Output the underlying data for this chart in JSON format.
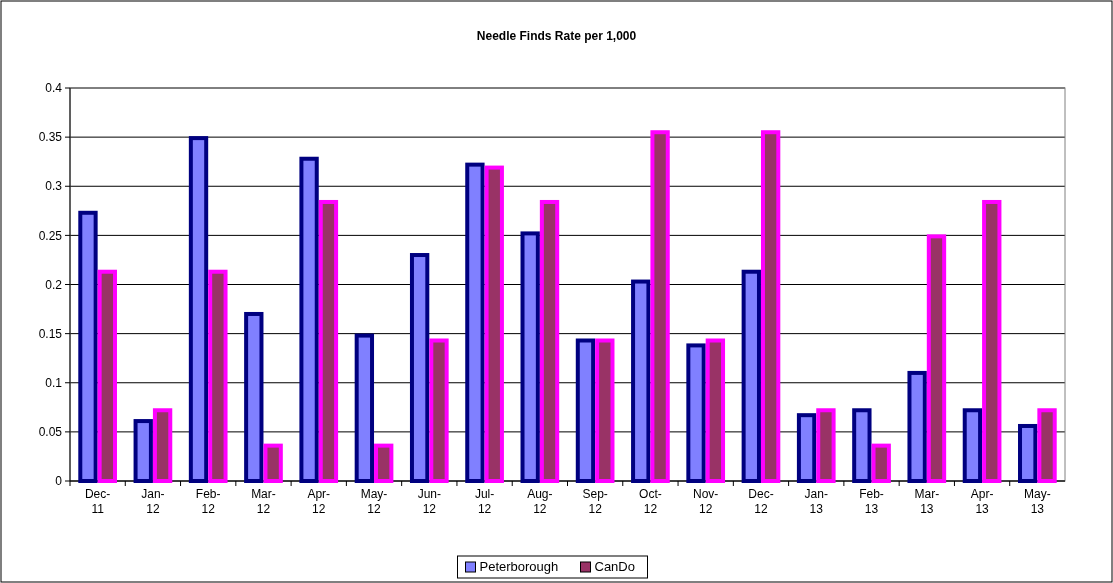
{
  "chart_data": {
    "type": "bar",
    "title": "Needle Finds Rate per 1,000",
    "categories": [
      "Dec-11",
      "Jan-12",
      "Feb-12",
      "Mar-12",
      "Apr-12",
      "May-12",
      "Jun-12",
      "Jul-12",
      "Aug-12",
      "Sep-12",
      "Oct-12",
      "Nov-12",
      "Dec-12",
      "Jan-13",
      "Feb-13",
      "Mar-13",
      "Apr-13",
      "May-13"
    ],
    "series": [
      {
        "name": "Peterborough",
        "color": "#8080ff",
        "values": [
          0.273,
          0.061,
          0.349,
          0.17,
          0.328,
          0.148,
          0.23,
          0.322,
          0.252,
          0.143,
          0.203,
          0.138,
          0.213,
          0.067,
          0.072,
          0.11,
          0.072,
          0.056
        ]
      },
      {
        "name": "CanDo",
        "color": "#993366",
        "values": [
          0.213,
          0.072,
          0.213,
          0.036,
          0.284,
          0.036,
          0.143,
          0.319,
          0.284,
          0.143,
          0.355,
          0.143,
          0.355,
          0.072,
          0.036,
          0.249,
          0.284,
          0.072
        ]
      }
    ],
    "ylim": [
      0,
      0.4
    ],
    "yticks": [
      0,
      0.05,
      0.1,
      0.15,
      0.2,
      0.25,
      0.3,
      0.35,
      0.4
    ],
    "grid": "y",
    "legend": "bottom"
  }
}
